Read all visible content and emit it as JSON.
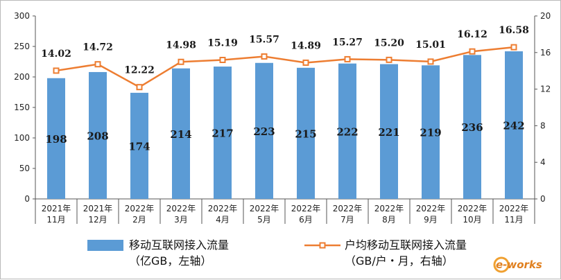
{
  "chart_data": {
    "type": "bar+line",
    "categories": [
      [
        "2021年",
        "11月"
      ],
      [
        "2021年",
        "12月"
      ],
      [
        "2022年",
        "2月"
      ],
      [
        "2022年",
        "3月"
      ],
      [
        "2022年",
        "4月"
      ],
      [
        "2022年",
        "5月"
      ],
      [
        "2022年",
        "6月"
      ],
      [
        "2022年",
        "7月"
      ],
      [
        "2022年",
        "8月"
      ],
      [
        "2022年",
        "9月"
      ],
      [
        "2022年",
        "10月"
      ],
      [
        "2022年",
        "11月"
      ]
    ],
    "bar_series": {
      "legend": [
        "移动互联网接入流量",
        "（亿GB，左轴）"
      ],
      "values": [
        198,
        208,
        174,
        214,
        217,
        223,
        215,
        222,
        221,
        219,
        236,
        242
      ],
      "labels": [
        "198",
        "208",
        "174",
        "214",
        "217",
        "223",
        "215",
        "222",
        "221",
        "219",
        "236",
        "242"
      ],
      "color": "#5b9bd5",
      "axis": "left"
    },
    "line_series": {
      "legend": [
        "户均移动互联网接入流量",
        "（GB/户・月，右轴）"
      ],
      "values": [
        14.02,
        14.72,
        12.22,
        14.98,
        15.19,
        15.57,
        14.89,
        15.27,
        15.2,
        15.01,
        16.12,
        16.58
      ],
      "labels": [
        "14.02",
        "14.72",
        "12.22",
        "14.98",
        "15.19",
        "15.57",
        "14.89",
        "15.27",
        "15.20",
        "15.01",
        "16.12",
        "16.58"
      ],
      "color": "#ed7d31",
      "axis": "right"
    },
    "left_axis": {
      "min": 0,
      "max": 300,
      "ticks": [
        "0",
        "50",
        "100",
        "150",
        "200",
        "250",
        "300"
      ]
    },
    "right_axis": {
      "min": 0,
      "max": 20,
      "ticks": [
        "0",
        "4",
        "8",
        "12",
        "16",
        "20"
      ]
    },
    "grid": false,
    "legend_position": "bottom"
  },
  "watermark": "e-works"
}
